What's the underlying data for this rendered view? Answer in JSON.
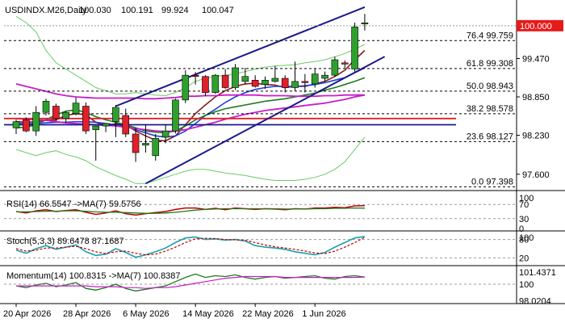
{
  "colors": {
    "up": "#2ea02e",
    "down": "#e0202a",
    "channel": "#1a1a8c",
    "ma_fast": "#8b1a1a",
    "ma_mid": "#1f3fd6",
    "ma_slow": "#1e7a1e",
    "magenta": "#c81ec8",
    "bb": "#66cc66",
    "fib": "#000000",
    "rsi_line": "#c00000",
    "rsi_ma": "#1e7a1e",
    "stoch_main": "#1aa0b0",
    "stoch_sig": "#c00000",
    "mom_line": "#1e7a1e",
    "mom_ma": "#c81ec8",
    "price_box": "#e51a1a"
  },
  "chart_data": {
    "type": "candlestick",
    "title": "USDINDX.M26,Daily",
    "ohlc_header": [
      "100.030",
      "100.191",
      "99.924",
      "100.047"
    ],
    "price_axis": {
      "ylim": [
        97.35,
        100.35
      ],
      "ticks": [
        "99.470",
        "98.850",
        "98.230",
        "97.600"
      ],
      "current_price": "100.000",
      "current_value": 100.0
    },
    "x_labels": [
      {
        "label": "20 Apr 2026",
        "bar": 0
      },
      {
        "label": "28 Apr 2026",
        "bar": 6
      },
      {
        "label": "6 May 2026",
        "bar": 12
      },
      {
        "label": "14 May 2026",
        "bar": 18
      },
      {
        "label": "22 May 2026",
        "bar": 24
      },
      {
        "label": "1 Jun 2026",
        "bar": 30
      }
    ],
    "candles": [
      [
        98.35,
        98.48,
        98.25,
        98.45
      ],
      [
        98.48,
        98.52,
        98.28,
        98.3
      ],
      [
        98.3,
        98.7,
        98.22,
        98.6
      ],
      [
        98.6,
        98.82,
        98.55,
        98.78
      ],
      [
        98.7,
        98.74,
        98.46,
        98.5
      ],
      [
        98.5,
        98.62,
        98.43,
        98.6
      ],
      [
        98.58,
        98.84,
        98.55,
        98.75
      ],
      [
        98.7,
        98.76,
        98.25,
        98.3
      ],
      [
        98.32,
        98.38,
        97.82,
        98.38
      ],
      [
        98.38,
        98.42,
        98.28,
        98.42
      ],
      [
        98.45,
        98.72,
        98.2,
        98.68
      ],
      [
        98.55,
        98.66,
        98.2,
        98.25
      ],
      [
        98.25,
        98.35,
        97.8,
        97.95
      ],
      [
        98.07,
        98.4,
        97.95,
        98.1
      ],
      [
        97.9,
        98.25,
        97.82,
        98.18
      ],
      [
        98.2,
        98.4,
        98.1,
        98.3
      ],
      [
        98.3,
        98.82,
        98.26,
        98.8
      ],
      [
        98.8,
        99.28,
        98.75,
        99.2
      ],
      [
        99.2,
        99.25,
        99.05,
        99.18
      ],
      [
        99.18,
        99.2,
        98.86,
        98.92
      ],
      [
        98.92,
        99.22,
        98.9,
        99.2
      ],
      [
        99.2,
        99.3,
        98.98,
        99.0
      ],
      [
        99.0,
        99.38,
        98.96,
        99.32
      ],
      [
        99.1,
        99.32,
        99.05,
        99.18
      ],
      [
        99.12,
        99.2,
        99.0,
        99.02
      ],
      [
        99.05,
        99.18,
        98.98,
        99.12
      ],
      [
        99.1,
        99.35,
        99.08,
        99.15
      ],
      [
        99.15,
        99.2,
        98.92,
        99.0
      ],
      [
        99.0,
        99.42,
        98.95,
        99.1
      ],
      [
        99.1,
        99.22,
        98.92,
        99.08
      ],
      [
        99.06,
        99.3,
        99.0,
        99.22
      ],
      [
        99.15,
        99.26,
        99.1,
        99.2
      ],
      [
        99.2,
        99.5,
        99.18,
        99.45
      ],
      [
        99.4,
        99.44,
        99.32,
        99.38
      ],
      [
        99.3,
        100.05,
        99.26,
        99.98
      ],
      [
        100.03,
        100.191,
        99.924,
        100.047
      ]
    ],
    "moving_averages": [
      {
        "key": "ma_fast",
        "values": [
          98.45,
          98.44,
          98.45,
          98.47,
          98.48,
          98.55,
          98.58,
          98.56,
          98.44,
          98.38,
          98.42,
          98.4,
          98.3,
          98.22,
          98.15,
          98.14,
          98.22,
          98.4,
          98.58,
          98.72,
          98.85,
          98.95,
          99.02,
          99.06,
          99.07,
          99.05,
          99.04,
          99.0,
          99.02,
          99.02,
          99.06,
          99.1,
          99.18,
          99.28,
          99.45,
          99.6
        ]
      },
      {
        "key": "ma_mid",
        "values": [
          98.42,
          98.42,
          98.42,
          98.43,
          98.44,
          98.44,
          98.45,
          98.45,
          98.44,
          98.42,
          98.4,
          98.38,
          98.32,
          98.27,
          98.22,
          98.2,
          98.22,
          98.3,
          98.42,
          98.55,
          98.65,
          98.76,
          98.85,
          98.92,
          98.97,
          99.0,
          99.02,
          99.02,
          99.02,
          99.03,
          99.05,
          99.08,
          99.12,
          99.16,
          99.24,
          99.32
        ]
      },
      {
        "key": "ma_slow",
        "values": [
          98.35,
          98.36,
          98.4,
          98.48,
          98.56,
          98.62,
          98.64,
          98.6,
          98.53,
          98.48,
          98.44,
          98.4,
          98.35,
          98.3,
          98.28,
          98.27,
          98.3,
          98.38,
          98.48,
          98.55,
          98.61,
          98.66,
          98.69,
          98.72,
          98.75,
          98.78,
          98.8,
          98.82,
          98.85,
          98.88,
          98.91,
          98.96,
          99.0,
          99.05,
          99.1,
          99.16
        ]
      },
      {
        "key": "magenta",
        "values": [
          99.06,
          99.02,
          98.98,
          98.94,
          98.9,
          98.87,
          98.85,
          98.84,
          98.83,
          98.83,
          98.83,
          98.83,
          98.83,
          98.82,
          98.82,
          98.83,
          98.84,
          98.86,
          98.86,
          98.87,
          98.87,
          98.88,
          98.88,
          98.88,
          98.88,
          98.87,
          98.87,
          98.87,
          98.86,
          98.86,
          98.86,
          98.87,
          98.87,
          98.88,
          98.88,
          98.88
        ]
      },
      {
        "key": "magenta",
        "values": [
          98.5,
          98.49,
          98.48,
          98.47,
          98.45,
          98.43,
          98.42,
          98.41,
          98.4,
          98.39,
          98.38,
          98.36,
          98.34,
          98.32,
          98.3,
          98.29,
          98.3,
          98.32,
          98.36,
          98.4,
          98.44,
          98.49,
          98.53,
          98.57,
          98.6,
          98.63,
          98.65,
          98.67,
          98.69,
          98.71,
          98.73,
          98.75,
          98.78,
          98.81,
          98.85,
          98.88
        ]
      },
      {
        "key": "bb",
        "values": [
          100.15,
          100.05,
          99.9,
          99.6,
          99.4,
          99.3,
          99.2,
          99.1,
          99.0,
          98.95,
          98.9,
          98.9,
          98.92,
          98.9,
          98.88,
          98.87,
          98.92,
          99.0,
          99.1,
          99.15,
          99.18,
          99.2,
          99.22,
          99.26,
          99.3,
          99.33,
          99.35,
          99.36,
          99.37,
          99.4,
          99.42,
          99.45,
          99.5,
          99.55,
          99.62,
          99.7
        ]
      },
      {
        "key": "bb",
        "values": [
          98.0,
          97.95,
          97.9,
          97.95,
          97.98,
          97.92,
          97.88,
          97.82,
          97.72,
          97.65,
          97.58,
          97.52,
          97.45,
          97.45,
          97.5,
          97.55,
          97.6,
          97.65,
          97.68,
          97.68,
          97.65,
          97.62,
          97.6,
          97.58,
          97.55,
          97.52,
          97.5,
          97.5,
          97.5,
          97.52,
          97.55,
          97.6,
          97.68,
          97.8,
          98.0,
          98.2
        ]
      }
    ],
    "horizontal_lines": [
      {
        "value": 98.4,
        "key": "channel"
      },
      {
        "value": 98.5,
        "key": "down"
      }
    ],
    "trendlines": [
      {
        "x1": 10,
        "y1": 98.7,
        "x2": 35,
        "y2": 100.3,
        "key": "channel"
      },
      {
        "x1": 13,
        "y1": 97.45,
        "x2": 37,
        "y2": 99.5,
        "key": "channel"
      }
    ],
    "fib_levels": [
      {
        "label": "76.4 99.759",
        "value": 99.759
      },
      {
        "label": "61.8 99.308",
        "value": 99.308
      },
      {
        "label": "50.0 98.943",
        "value": 98.943
      },
      {
        "label": "38.2 98.578",
        "value": 98.578
      },
      {
        "label": "23.6 98.127",
        "value": 98.127
      },
      {
        "label": "0.0 97.398",
        "value": 97.398
      }
    ],
    "rsi": {
      "label": "RSI(14) 66.5547  ->MA(7) 59.5756",
      "ylim": [
        0,
        100
      ],
      "ticks": [
        "100",
        "70",
        "30",
        "0"
      ],
      "guides": [
        70,
        30
      ],
      "line": [
        50,
        46,
        52,
        55,
        50,
        53,
        55,
        48,
        42,
        46,
        52,
        44,
        40,
        44,
        47,
        50,
        56,
        60,
        60,
        56,
        59,
        55,
        60,
        58,
        56,
        58,
        57,
        55,
        58,
        57,
        60,
        60,
        62,
        61,
        66,
        66.5547
      ],
      "ma": [
        49,
        49,
        50,
        51,
        51,
        52,
        52,
        51,
        49,
        48,
        48,
        47,
        46,
        45,
        45,
        46,
        48,
        51,
        54,
        56,
        57,
        58,
        58,
        58,
        58,
        58,
        58,
        57,
        57,
        57,
        58,
        58,
        59,
        59,
        60,
        59.5756
      ]
    },
    "stoch": {
      "label": "Stoch(5,3,3) 89.6478 87.1687",
      "ylim": [
        0,
        100
      ],
      "ticks": [
        "100",
        "80",
        "20"
      ],
      "guides": [
        80,
        20
      ],
      "main": [
        45,
        35,
        50,
        60,
        48,
        55,
        62,
        40,
        28,
        32,
        50,
        38,
        22,
        30,
        40,
        52,
        70,
        85,
        88,
        80,
        82,
        78,
        80,
        75,
        60,
        55,
        52,
        48,
        40,
        35,
        30,
        38,
        55,
        70,
        85,
        89.6478
      ],
      "signal": [
        50,
        42,
        45,
        52,
        52,
        55,
        58,
        50,
        40,
        34,
        40,
        42,
        35,
        30,
        32,
        42,
        55,
        70,
        82,
        84,
        83,
        80,
        79,
        77,
        70,
        62,
        56,
        52,
        48,
        42,
        36,
        34,
        42,
        55,
        70,
        87.1687
      ]
    },
    "momentum": {
      "label": "Momentum(14) 100.8315  ->MA(7) 100.8387",
      "ylim": [
        97.9,
        101.9
      ],
      "ticks": [
        "101.4371",
        "100",
        "98.0204"
      ],
      "guides": [
        100
      ],
      "line": [
        99.8,
        99.6,
        99.9,
        100.1,
        99.7,
        99.9,
        100.2,
        99.5,
        99.3,
        99.6,
        100.0,
        99.5,
        99.2,
        99.4,
        99.6,
        99.8,
        100.3,
        100.8,
        101.2,
        100.8,
        101.0,
        100.9,
        101.1,
        100.8,
        100.6,
        100.8,
        100.9,
        100.7,
        100.8,
        100.9,
        101.0,
        100.7,
        100.6,
        100.9,
        101.0,
        100.8315
      ],
      "ma": [
        99.8,
        99.8,
        99.8,
        99.8,
        99.8,
        99.8,
        99.8,
        99.8,
        99.7,
        99.7,
        99.7,
        99.6,
        99.6,
        99.5,
        99.6,
        99.6,
        99.7,
        99.9,
        100.1,
        100.3,
        100.5,
        100.7,
        100.8,
        100.9,
        100.9,
        100.9,
        100.9,
        100.8,
        100.8,
        100.8,
        100.8,
        100.8,
        100.8,
        100.8,
        100.8,
        100.8387
      ]
    }
  }
}
